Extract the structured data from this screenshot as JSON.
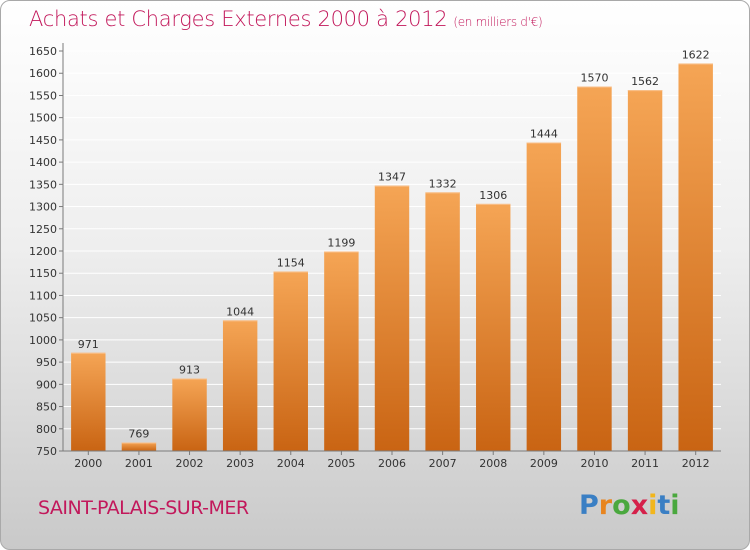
{
  "header": {
    "title": "Achats et Charges Externes 2000 à 2012",
    "unit": "(en milliers d'€)"
  },
  "footer": {
    "city": "SAINT-PALAIS-SUR-MER"
  },
  "brand": {
    "letters": [
      "P",
      "r",
      "o",
      "x",
      "i",
      "t",
      "i"
    ],
    "colors": [
      "#3a7fc4",
      "#e8851f",
      "#4aa83e",
      "#d5204a",
      "#f2b61c",
      "#3a7fc4",
      "#4aa83e"
    ]
  },
  "colors": {
    "title": "#c2185b",
    "bar_top": "#f5a555",
    "bar_bottom": "#c96413",
    "axis": "#7a7a7a",
    "grid": "#ffffff"
  },
  "chart_data": {
    "type": "bar",
    "categories": [
      "2000",
      "2001",
      "2002",
      "2003",
      "2004",
      "2005",
      "2006",
      "2007",
      "2008",
      "2009",
      "2010",
      "2011",
      "2012"
    ],
    "values": [
      971,
      769,
      913,
      1044,
      1154,
      1199,
      1347,
      1332,
      1306,
      1444,
      1570,
      1562,
      1622
    ],
    "ylim": [
      750,
      1650
    ],
    "yticks": [
      750,
      800,
      850,
      900,
      950,
      1000,
      1050,
      1100,
      1150,
      1200,
      1250,
      1300,
      1350,
      1400,
      1450,
      1500,
      1550,
      1600,
      1650
    ],
    "grid": true,
    "data_labels": true
  }
}
